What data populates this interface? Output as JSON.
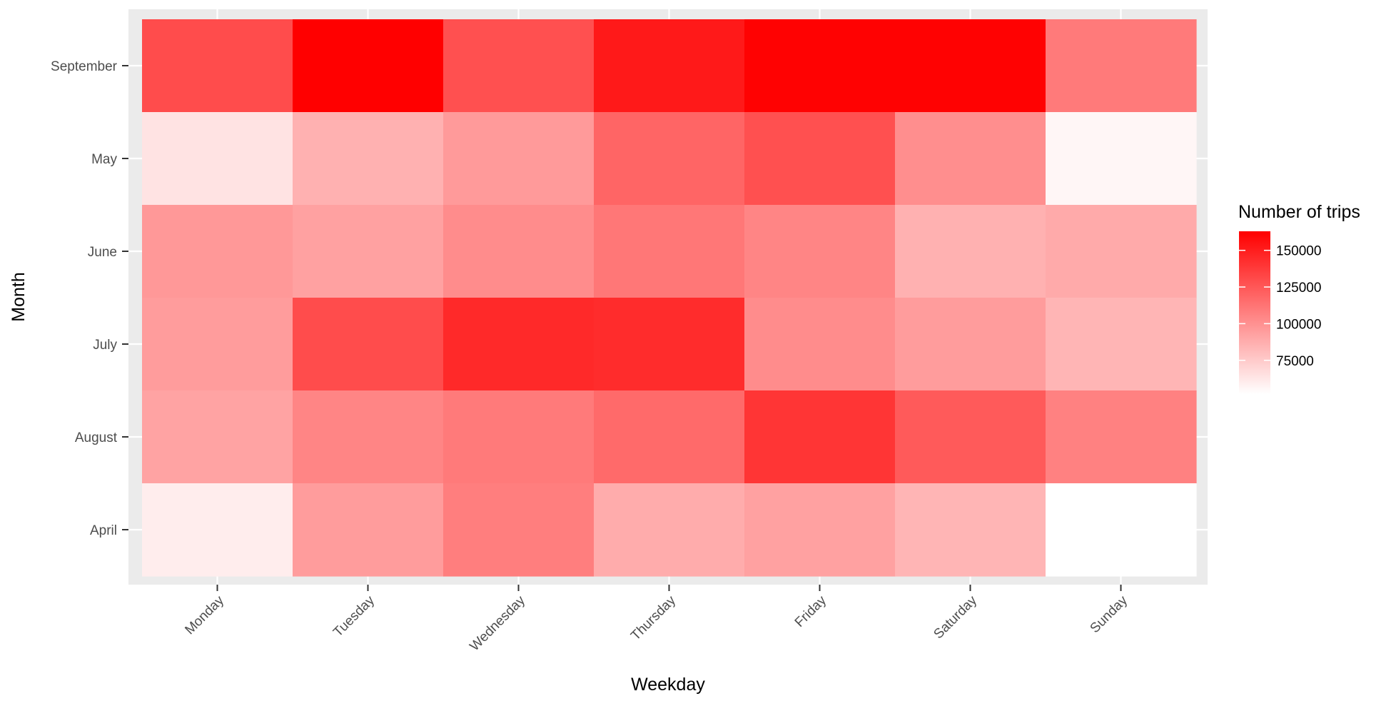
{
  "chart_data": {
    "type": "heatmap",
    "title": "",
    "xlabel": "Weekday",
    "ylabel": "Month",
    "x": [
      "Monday",
      "Tuesday",
      "Wednesday",
      "Thursday",
      "Friday",
      "Saturday",
      "Sunday"
    ],
    "y": [
      "September",
      "May",
      "June",
      "July",
      "August",
      "April"
    ],
    "values": [
      [
        130000,
        163000,
        128000,
        152000,
        162000,
        162000,
        110000
      ],
      [
        64000,
        86000,
        96000,
        119000,
        128000,
        101000,
        56000
      ],
      [
        97000,
        93000,
        102000,
        111000,
        105000,
        86000,
        89000
      ],
      [
        95000,
        130000,
        145000,
        144000,
        102000,
        95000,
        84000
      ],
      [
        92000,
        105000,
        110000,
        117000,
        140000,
        124000,
        107000
      ],
      [
        60000,
        95000,
        108000,
        88000,
        93000,
        84000,
        52000
      ]
    ],
    "colorbar": {
      "title": "Number of trips",
      "ticks": [
        75000,
        100000,
        125000,
        150000
      ],
      "range": [
        52000,
        163000
      ],
      "low_color": "#ffffff",
      "high_color": "#ff0000"
    },
    "grid": true,
    "legend_position": "right"
  }
}
